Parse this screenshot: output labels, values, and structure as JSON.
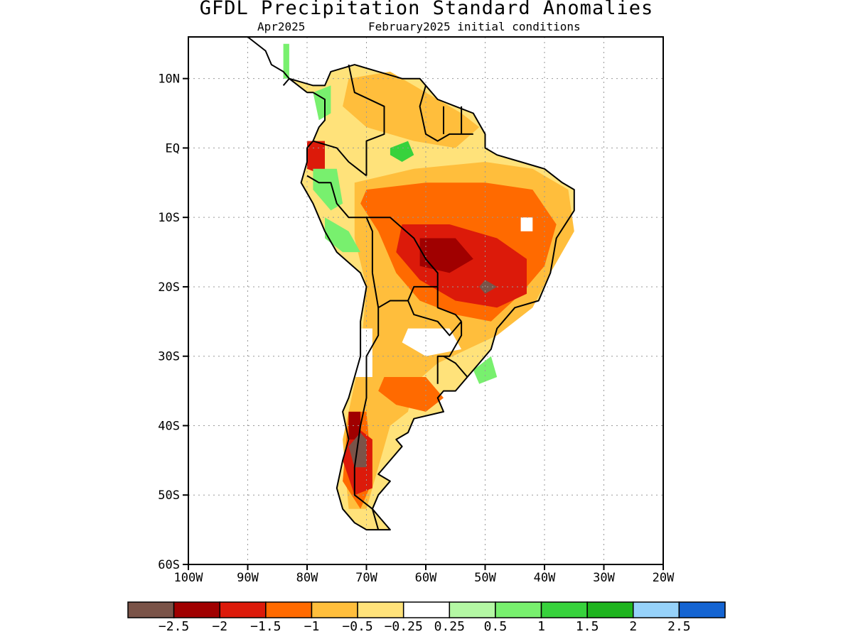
{
  "title": "GFDL Precipitation Standard Anomalies",
  "subtitle_left": "Apr2025",
  "subtitle_right": "February2025 initial conditions",
  "map": {
    "lon_range": [
      -100,
      -20
    ],
    "lat_range": [
      -60,
      16
    ],
    "lat_ticks": [
      "10N",
      "EQ",
      "10S",
      "20S",
      "30S",
      "40S",
      "50S",
      "60S"
    ],
    "lat_tick_values": [
      10,
      0,
      -10,
      -20,
      -30,
      -40,
      -50,
      -60
    ],
    "lon_ticks": [
      "100W",
      "90W",
      "80W",
      "70W",
      "60W",
      "50W",
      "40W",
      "30W",
      "20W"
    ],
    "lon_tick_values": [
      -100,
      -90,
      -80,
      -70,
      -60,
      -50,
      -40,
      -30,
      -20
    ],
    "grid": "dotted"
  },
  "colorbar": {
    "colors": [
      "#7a5348",
      "#a00000",
      "#dc1a0a",
      "#ff6a00",
      "#ffbe3c",
      "#ffe27a",
      "#ffffff",
      "#b4f8a4",
      "#78f06e",
      "#37d23c",
      "#1eb41e",
      "#96d2fa",
      "#1464d2"
    ],
    "labels": [
      "−2.5",
      "−2",
      "−1.5",
      "−1",
      "−0.5",
      "−0.25",
      "0.25",
      "0.5",
      "1",
      "1.5",
      "2",
      "2.5"
    ]
  },
  "anomaly_regions": [
    {
      "level": "below -0.5",
      "color": "#ffbe3c",
      "lon_lat": [
        [
          -72,
          -5
        ],
        [
          -62,
          -3
        ],
        [
          -50,
          -2
        ],
        [
          -42,
          -3
        ],
        [
          -36,
          -6
        ],
        [
          -35,
          -12
        ],
        [
          -39,
          -18
        ],
        [
          -42,
          -23
        ],
        [
          -48,
          -27
        ],
        [
          -53,
          -29
        ],
        [
          -58,
          -31
        ],
        [
          -62,
          -34
        ],
        [
          -63,
          -38
        ],
        [
          -66,
          -40
        ],
        [
          -68,
          -46
        ],
        [
          -70,
          -52
        ],
        [
          -73,
          -52
        ],
        [
          -74,
          -42
        ],
        [
          -71,
          -30
        ],
        [
          -70,
          -20
        ],
        [
          -72,
          -13
        ]
      ]
    },
    {
      "level": "below -0.5",
      "color": "#ffbe3c",
      "lon_lat": [
        [
          -73,
          10
        ],
        [
          -66,
          11
        ],
        [
          -60,
          8
        ],
        [
          -54,
          5
        ],
        [
          -51,
          3
        ],
        [
          -55,
          0
        ],
        [
          -62,
          1
        ],
        [
          -70,
          3
        ],
        [
          -74,
          6
        ]
      ]
    },
    {
      "level": "below -1",
      "color": "#ff6a00",
      "lon_lat": [
        [
          -70,
          -6
        ],
        [
          -60,
          -5
        ],
        [
          -50,
          -5
        ],
        [
          -42,
          -6
        ],
        [
          -38,
          -11
        ],
        [
          -40,
          -17
        ],
        [
          -44,
          -21
        ],
        [
          -49,
          -25
        ],
        [
          -55,
          -24
        ],
        [
          -61,
          -22
        ],
        [
          -65,
          -18
        ],
        [
          -68,
          -12
        ],
        [
          -71,
          -8
        ]
      ]
    },
    {
      "level": "below -1",
      "color": "#ff6a00",
      "lon_lat": [
        [
          -67,
          -33
        ],
        [
          -60,
          -33
        ],
        [
          -57,
          -36
        ],
        [
          -60,
          -38
        ],
        [
          -65,
          -37
        ],
        [
          -68,
          -35
        ]
      ]
    },
    {
      "level": "below -1",
      "color": "#ff6a00",
      "lon_lat": [
        [
          -73,
          -38
        ],
        [
          -70,
          -38
        ],
        [
          -69,
          -48
        ],
        [
          -71,
          -52
        ],
        [
          -74,
          -48
        ]
      ]
    },
    {
      "level": "below -1.5",
      "color": "#dc1a0a",
      "lon_lat": [
        [
          -64,
          -11
        ],
        [
          -56,
          -11
        ],
        [
          -48,
          -13
        ],
        [
          -43,
          -16
        ],
        [
          -43,
          -21
        ],
        [
          -48,
          -23
        ],
        [
          -55,
          -22
        ],
        [
          -61,
          -19
        ],
        [
          -65,
          -15
        ]
      ]
    },
    {
      "level": "below -1.5",
      "color": "#dc1a0a",
      "lon_lat": [
        [
          -72,
          -40
        ],
        [
          -69,
          -42
        ],
        [
          -69,
          -49
        ],
        [
          -72,
          -50
        ],
        [
          -74,
          -45
        ]
      ]
    },
    {
      "level": "below -1.5",
      "color": "#dc1a0a",
      "lon_lat": [
        [
          -80,
          1
        ],
        [
          -77,
          1
        ],
        [
          -77,
          -4
        ],
        [
          -80,
          -3
        ]
      ]
    },
    {
      "level": "below -2",
      "color": "#a00000",
      "lon_lat": [
        [
          -61,
          -13
        ],
        [
          -55,
          -13
        ],
        [
          -52,
          -16
        ],
        [
          -56,
          -18
        ],
        [
          -61,
          -17
        ]
      ]
    },
    {
      "level": "below -2",
      "color": "#a00000",
      "lon_lat": [
        [
          -73,
          -38
        ],
        [
          -71,
          -38
        ],
        [
          -71,
          -42
        ],
        [
          -73,
          -42
        ]
      ]
    },
    {
      "level": "below -2.5",
      "color": "#7a5348",
      "lon_lat": [
        [
          -71,
          -41
        ],
        [
          -70,
          -42
        ],
        [
          -70,
          -46
        ],
        [
          -72,
          -46
        ],
        [
          -73,
          -43
        ]
      ]
    },
    {
      "level": "below -2.5",
      "color": "#7a5348",
      "lon_lat": [
        [
          -50,
          -19
        ],
        [
          -48,
          -20
        ],
        [
          -50,
          -21
        ],
        [
          -51,
          -20
        ]
      ]
    },
    {
      "level": "0.5 to 1",
      "color": "#78f06e",
      "lon_lat": [
        [
          -79,
          -3
        ],
        [
          -75,
          -3
        ],
        [
          -74,
          -8
        ],
        [
          -76,
          -9
        ],
        [
          -79,
          -6
        ]
      ]
    },
    {
      "level": "0.5 to 1",
      "color": "#78f06e",
      "lon_lat": [
        [
          -77,
          -10
        ],
        [
          -73,
          -12
        ],
        [
          -71,
          -15
        ],
        [
          -74,
          -15
        ],
        [
          -77,
          -13
        ]
      ]
    },
    {
      "level": "0.5 to 1",
      "color": "#78f06e",
      "lon_lat": [
        [
          -52,
          -32
        ],
        [
          -49,
          -30
        ],
        [
          -48,
          -33
        ],
        [
          -51,
          -34
        ]
      ]
    },
    {
      "level": "1 to 1.5",
      "color": "#37d23c",
      "lon_lat": [
        [
          -66,
          0
        ],
        [
          -63,
          1
        ],
        [
          -62,
          -1
        ],
        [
          -64,
          -2
        ],
        [
          -66,
          -1
        ]
      ]
    },
    {
      "level": "0.5 to 1",
      "color": "#78f06e",
      "lon_lat": [
        [
          -79,
          8
        ],
        [
          -76,
          9
        ],
        [
          -76,
          5
        ],
        [
          -78,
          4
        ]
      ]
    },
    {
      "level": "0.5 to 1",
      "color": "#78f06e",
      "lon_lat": [
        [
          -84,
          15
        ],
        [
          -83,
          15
        ],
        [
          -83,
          10
        ],
        [
          -84,
          10
        ]
      ]
    }
  ],
  "white_patches": [
    {
      "color": "#ffffff",
      "lon_lat": [
        [
          -44,
          -10
        ],
        [
          -42,
          -10
        ],
        [
          -42,
          -12
        ],
        [
          -44,
          -12
        ]
      ]
    },
    {
      "color": "#ffffff",
      "lon_lat": [
        [
          -63,
          -26
        ],
        [
          -56,
          -26
        ],
        [
          -54,
          -29
        ],
        [
          -60,
          -30
        ],
        [
          -64,
          -28
        ]
      ]
    },
    {
      "color": "#ffffff",
      "lon_lat": [
        [
          -72,
          -26
        ],
        [
          -69,
          -26
        ],
        [
          -69,
          -33
        ],
        [
          -72,
          -33
        ]
      ]
    }
  ],
  "coastline": [
    [
      -83,
      10
    ],
    [
      -79,
      9
    ],
    [
      -77,
      9
    ],
    [
      -76,
      11
    ],
    [
      -72,
      12
    ],
    [
      -68,
      11
    ],
    [
      -64,
      10
    ],
    [
      -61,
      10
    ],
    [
      -58,
      7
    ],
    [
      -55,
      6
    ],
    [
      -52,
      5
    ],
    [
      -50,
      2
    ],
    [
      -50,
      0
    ],
    [
      -48,
      -1
    ],
    [
      -44,
      -2
    ],
    [
      -40,
      -3
    ],
    [
      -37,
      -5
    ],
    [
      -35,
      -6
    ],
    [
      -35,
      -9
    ],
    [
      -38,
      -13
    ],
    [
      -39,
      -18
    ],
    [
      -41,
      -22
    ],
    [
      -45,
      -23
    ],
    [
      -48,
      -26
    ],
    [
      -49,
      -29
    ],
    [
      -51,
      -31
    ],
    [
      -53,
      -33
    ],
    [
      -55,
      -35
    ],
    [
      -57,
      -35
    ],
    [
      -58,
      -36
    ],
    [
      -57,
      -38
    ],
    [
      -62,
      -39
    ],
    [
      -63,
      -41
    ],
    [
      -65,
      -42
    ],
    [
      -64,
      -43
    ],
    [
      -66,
      -45
    ],
    [
      -68,
      -47
    ],
    [
      -66,
      -48
    ],
    [
      -68,
      -50
    ],
    [
      -69,
      -52
    ],
    [
      -68,
      -53
    ],
    [
      -66,
      -55
    ],
    [
      -68,
      -55
    ],
    [
      -70,
      -55
    ],
    [
      -72,
      -54
    ],
    [
      -74,
      -52
    ],
    [
      -75,
      -49
    ],
    [
      -74,
      -45
    ],
    [
      -73,
      -42
    ],
    [
      -74,
      -38
    ],
    [
      -73,
      -36
    ],
    [
      -71,
      -30
    ],
    [
      -71,
      -25
    ],
    [
      -70,
      -20
    ],
    [
      -71,
      -18
    ],
    [
      -75,
      -15
    ],
    [
      -77,
      -12
    ],
    [
      -79,
      -8
    ],
    [
      -81,
      -5
    ],
    [
      -80,
      -2
    ],
    [
      -80,
      0
    ],
    [
      -79,
      1
    ],
    [
      -78,
      3
    ],
    [
      -77,
      4
    ],
    [
      -77,
      7
    ],
    [
      -79,
      8
    ],
    [
      -80,
      8
    ]
  ],
  "north_coast": [
    [
      -90,
      16
    ],
    [
      -87,
      14
    ],
    [
      -86,
      12
    ],
    [
      -84,
      11
    ],
    [
      -83,
      10
    ],
    [
      -84,
      9
    ]
  ],
  "borders": [
    [
      [
        -73,
        12
      ],
      [
        -72,
        8
      ],
      [
        -67,
        6
      ],
      [
        -67,
        2
      ],
      [
        -70,
        1
      ],
      [
        -70,
        -4
      ]
    ],
    [
      [
        -60,
        9
      ],
      [
        -61,
        6
      ],
      [
        -60,
        2
      ],
      [
        -58,
        1
      ],
      [
        -56,
        2
      ],
      [
        -54,
        2
      ],
      [
        -52,
        2
      ]
    ],
    [
      [
        -57,
        6
      ],
      [
        -57,
        2
      ]
    ],
    [
      [
        -54,
        6
      ],
      [
        -54,
        2
      ]
    ],
    [
      [
        -79,
        1
      ],
      [
        -75,
        0
      ],
      [
        -73,
        -2
      ],
      [
        -70,
        -4
      ]
    ],
    [
      [
        -80,
        -4
      ],
      [
        -78,
        -5
      ],
      [
        -76,
        -5
      ],
      [
        -75,
        -8
      ],
      [
        -73,
        -10
      ],
      [
        -70,
        -10
      ],
      [
        -69,
        -12
      ],
      [
        -69,
        -18
      ]
    ],
    [
      [
        -70,
        -10
      ],
      [
        -66,
        -10
      ],
      [
        -62,
        -13
      ],
      [
        -60,
        -16
      ],
      [
        -58,
        -18
      ],
      [
        -58,
        -20
      ]
    ],
    [
      [
        -69,
        -18
      ],
      [
        -68,
        -23
      ],
      [
        -66,
        -22
      ],
      [
        -63,
        -22
      ],
      [
        -62,
        -20
      ],
      [
        -58,
        -20
      ]
    ],
    [
      [
        -63,
        -22
      ],
      [
        -62,
        -24
      ],
      [
        -58,
        -25
      ],
      [
        -56,
        -27
      ],
      [
        -55,
        -26
      ],
      [
        -54,
        -25
      ]
    ],
    [
      [
        -58,
        -20
      ],
      [
        -58,
        -23
      ],
      [
        -55,
        -24
      ],
      [
        -54,
        -25
      ]
    ],
    [
      [
        -54,
        -25
      ],
      [
        -54,
        -27
      ],
      [
        -56,
        -30
      ],
      [
        -58,
        -30
      ],
      [
        -58,
        -34
      ]
    ],
    [
      [
        -53,
        -33
      ],
      [
        -55,
        -31
      ],
      [
        -57,
        -30
      ]
    ],
    [
      [
        -68,
        -23
      ],
      [
        -68,
        -27
      ],
      [
        -70,
        -30
      ],
      [
        -70,
        -36
      ],
      [
        -71,
        -40
      ],
      [
        -72,
        -46
      ],
      [
        -72,
        -50
      ],
      [
        -69,
        -52
      ]
    ],
    [
      [
        -69,
        -52
      ],
      [
        -68,
        -55
      ]
    ]
  ]
}
